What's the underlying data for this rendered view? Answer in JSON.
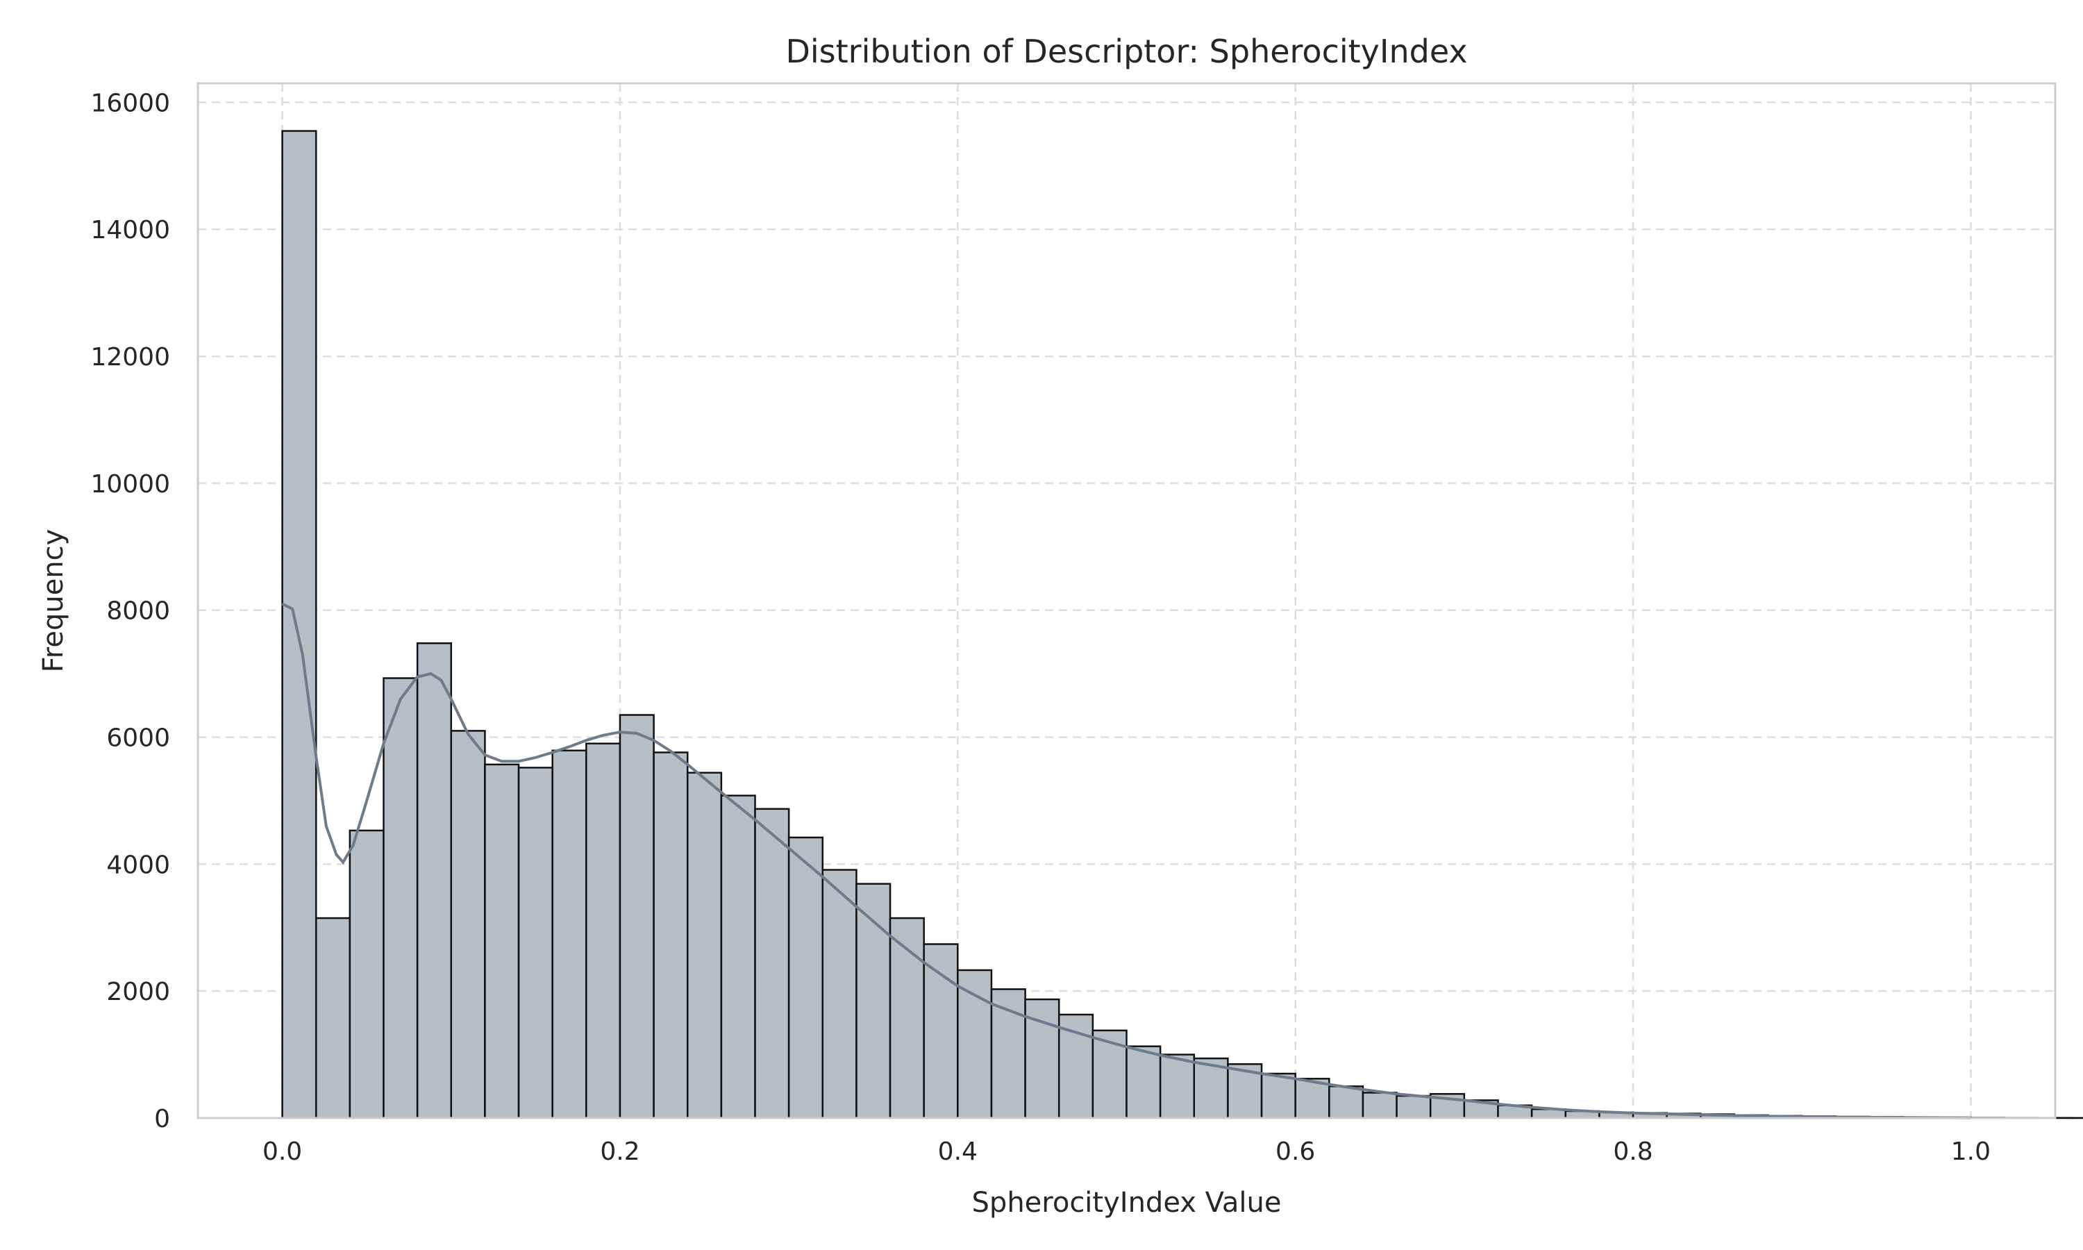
{
  "chart_data": {
    "type": "histogram",
    "title": "Distribution of Descriptor: SpherocityIndex",
    "xlabel": "SpherocityIndex Value",
    "ylabel": "Frequency",
    "xlim": [
      -0.05,
      1.05
    ],
    "ylim": [
      0,
      16300
    ],
    "x_ticks": [
      0.0,
      0.2,
      0.4,
      0.6,
      0.8,
      1.0
    ],
    "x_tick_labels": [
      "0.0",
      "0.2",
      "0.4",
      "0.6",
      "0.8",
      "1.0"
    ],
    "y_ticks": [
      0,
      2000,
      4000,
      6000,
      8000,
      10000,
      12000,
      14000,
      16000
    ],
    "y_tick_labels": [
      "0",
      "2000",
      "4000",
      "6000",
      "8000",
      "10000",
      "12000",
      "14000",
      "16000"
    ],
    "grid": true,
    "legend": "none",
    "bins": {
      "start": 0.0,
      "width": 0.02,
      "counts": [
        15550,
        3150,
        4530,
        6930,
        7480,
        6100,
        5570,
        5520,
        5790,
        5900,
        6350,
        5760,
        5440,
        5080,
        4870,
        4420,
        3910,
        3690,
        3150,
        2740,
        2330,
        2030,
        1870,
        1630,
        1380,
        1130,
        1000,
        940,
        850,
        700,
        620,
        500,
        400,
        350,
        380,
        280,
        200,
        140,
        110,
        90,
        80,
        70,
        60,
        45,
        35,
        28,
        22,
        18,
        14,
        10,
        6,
        4,
        3,
        2,
        1,
        1,
        1,
        1,
        1,
        1
      ]
    },
    "kde": {
      "x": [
        0.0,
        0.006,
        0.012,
        0.02,
        0.026,
        0.032,
        0.036,
        0.042,
        0.05,
        0.06,
        0.07,
        0.08,
        0.088,
        0.094,
        0.1,
        0.11,
        0.12,
        0.13,
        0.14,
        0.15,
        0.16,
        0.17,
        0.18,
        0.19,
        0.2,
        0.21,
        0.22,
        0.23,
        0.24,
        0.25,
        0.26,
        0.28,
        0.3,
        0.32,
        0.34,
        0.36,
        0.38,
        0.4,
        0.42,
        0.44,
        0.46,
        0.48,
        0.5,
        0.52,
        0.54,
        0.56,
        0.58,
        0.6,
        0.62,
        0.64,
        0.66,
        0.68,
        0.7,
        0.72,
        0.74,
        0.76,
        0.78,
        0.8,
        0.84,
        0.88,
        0.92,
        0.96,
        1.0
      ],
      "y": [
        8100,
        8020,
        7300,
        5700,
        4600,
        4150,
        4030,
        4300,
        5000,
        5900,
        6600,
        6950,
        7000,
        6900,
        6600,
        6050,
        5720,
        5620,
        5620,
        5680,
        5760,
        5850,
        5950,
        6030,
        6080,
        6060,
        5950,
        5780,
        5570,
        5350,
        5130,
        4700,
        4250,
        3800,
        3330,
        2870,
        2450,
        2080,
        1800,
        1600,
        1430,
        1270,
        1120,
        990,
        880,
        790,
        700,
        620,
        530,
        450,
        380,
        330,
        280,
        220,
        170,
        130,
        100,
        80,
        50,
        30,
        15,
        8,
        3
      ]
    },
    "colors": {
      "bar_fill": "#b6bec6",
      "bar_edge": "#111111",
      "kde_line": "#6e7b8a",
      "grid": "#dddddd",
      "frame": "#cccccc"
    }
  }
}
